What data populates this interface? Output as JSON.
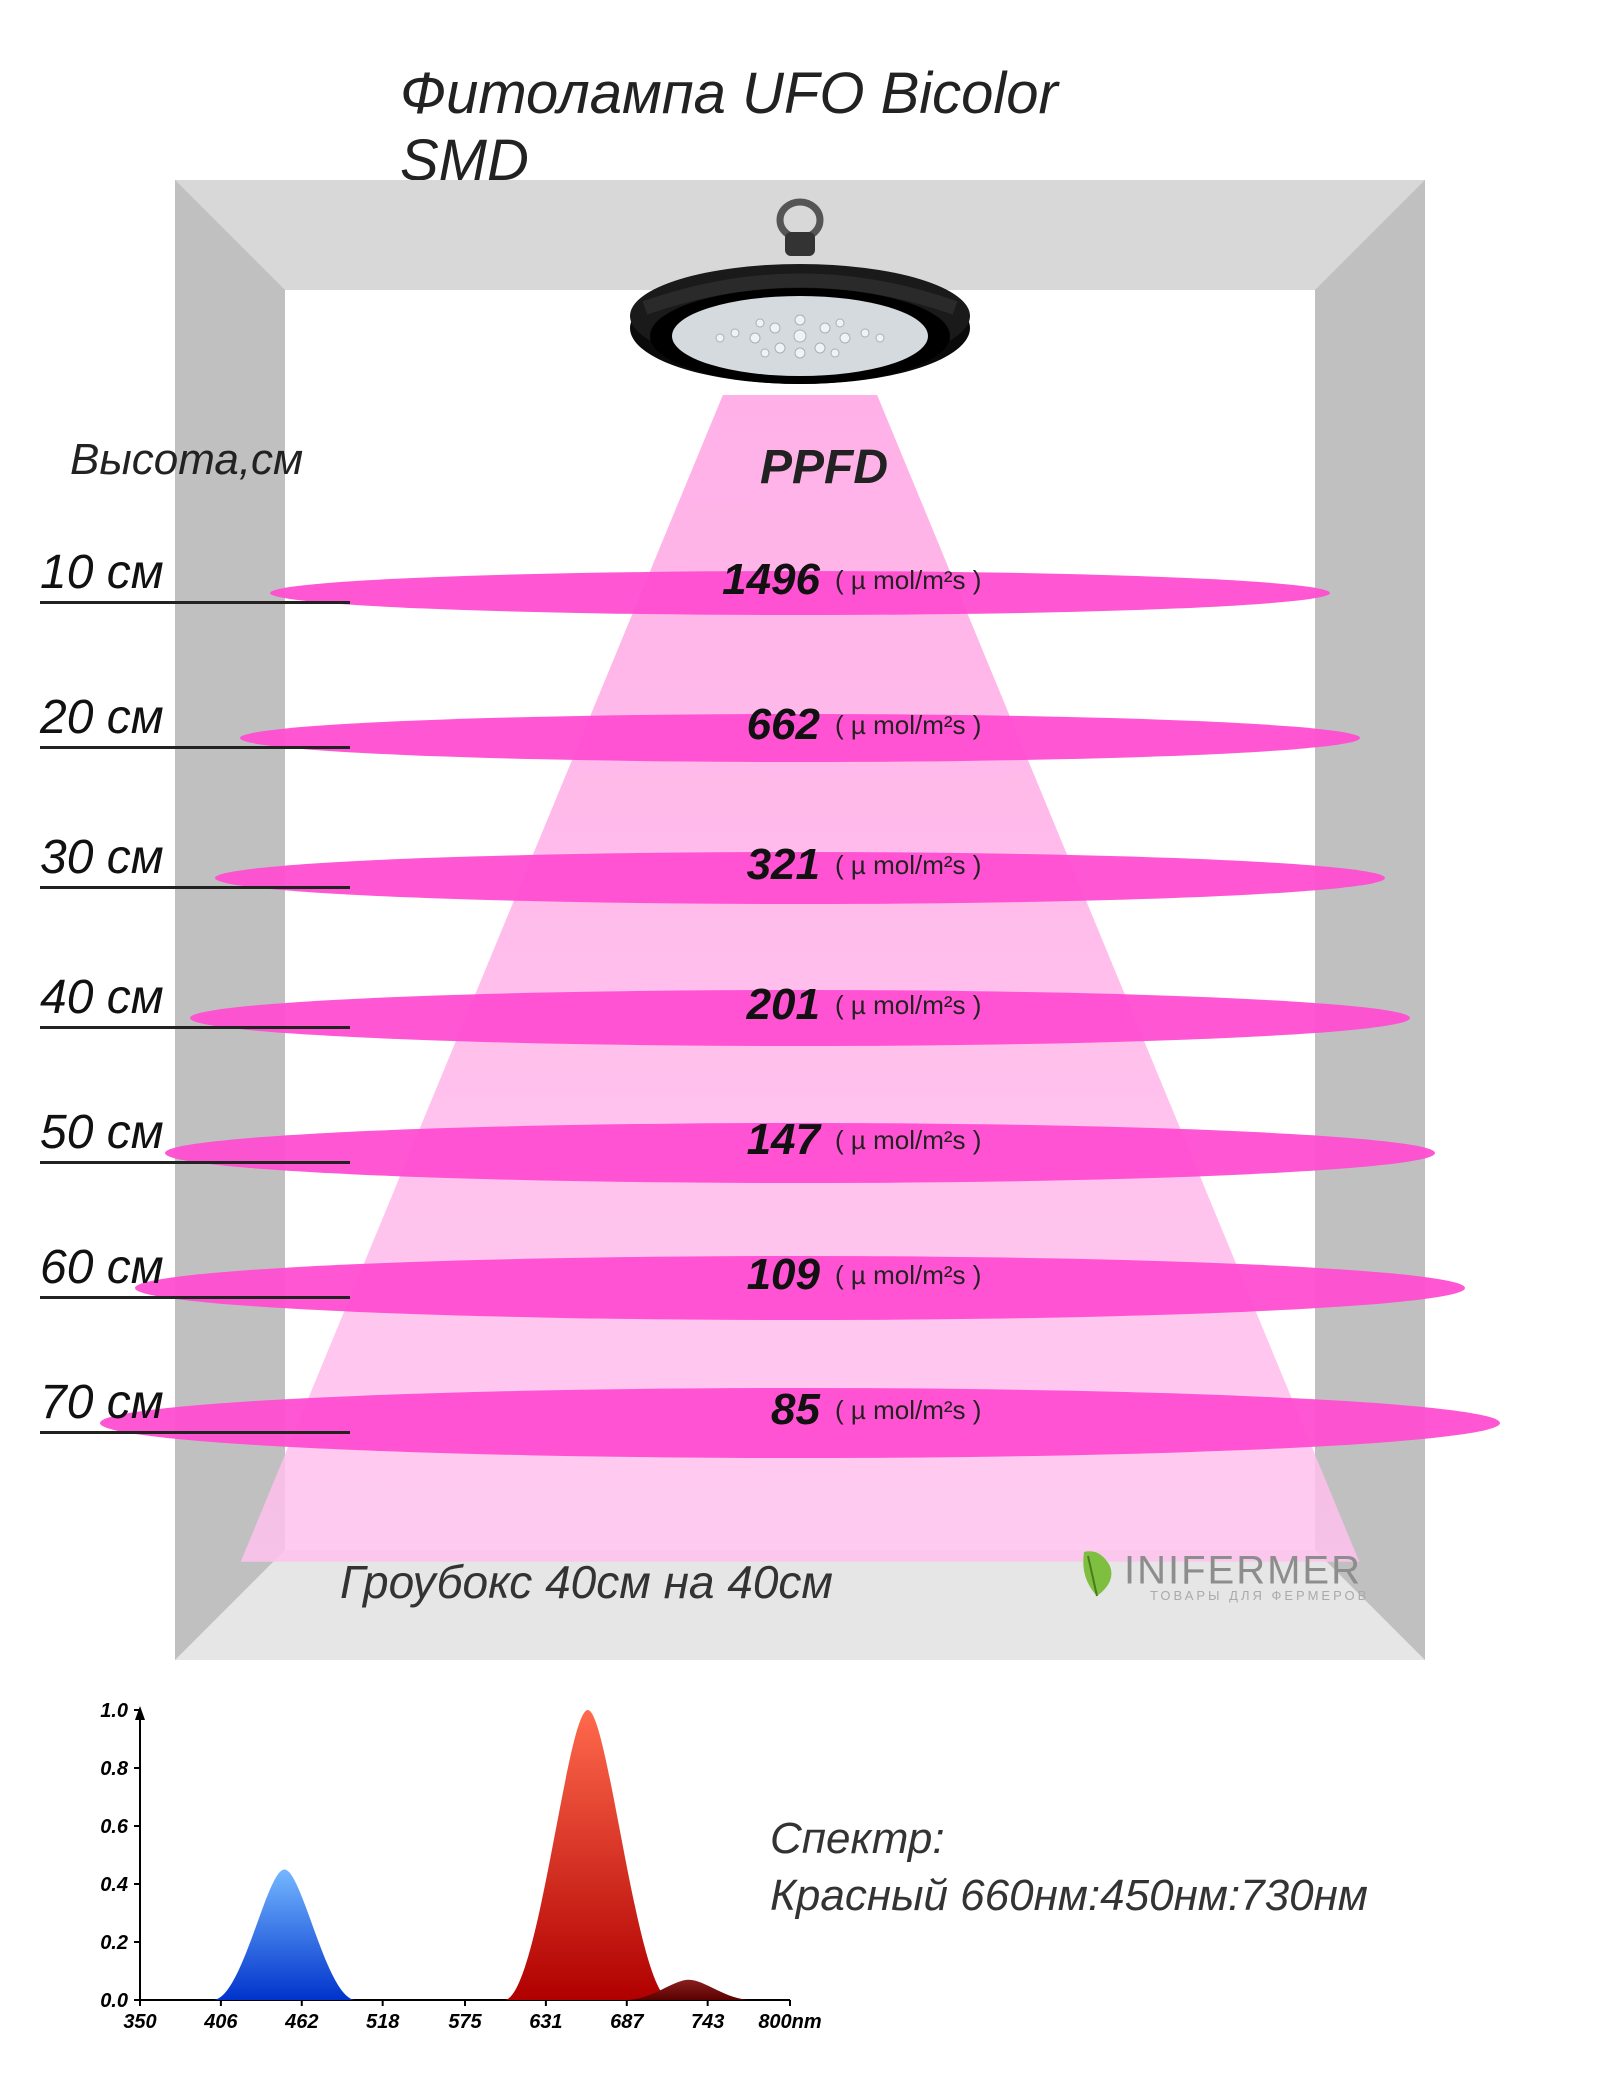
{
  "title": "Фитолампа UFO Bicolor SMD",
  "height_axis_label": "Высота,см",
  "ppfd_label": "PPFD",
  "unit_text": "( µ mol/m²s )",
  "growbox_label": "Гроубокс 40см на 40см",
  "logo_text": "INIFERMER",
  "logo_subtext": "ТОВАРЫ ДЛЯ ФЕРМЕРОВ",
  "spectrum_label_1": "Спектр:",
  "spectrum_label_2": "Красный 660нм:450нм:730нм",
  "colors": {
    "background": "#ffffff",
    "text": "#222222",
    "cone_light": "#ffb8e8",
    "cone_mid": "#ffa3e3",
    "ellipse": "#ff4dd2",
    "frame_light": "#dcdcdc",
    "frame_dark": "#b0b0b0",
    "lamp_body": "#1a1a1a",
    "lamp_face": "#cfd4d8"
  },
  "rows": [
    {
      "distance": "10 см",
      "value": "1496",
      "top": 545,
      "ellipse_w": 1060,
      "ellipse_h": 44
    },
    {
      "distance": "20 см",
      "value": "662",
      "top": 690,
      "ellipse_w": 1120,
      "ellipse_h": 48
    },
    {
      "distance": "30 см",
      "value": "321",
      "top": 830,
      "ellipse_w": 1170,
      "ellipse_h": 52
    },
    {
      "distance": "40 см",
      "value": "201",
      "top": 970,
      "ellipse_w": 1220,
      "ellipse_h": 56
    },
    {
      "distance": "50 см",
      "value": "147",
      "top": 1105,
      "ellipse_w": 1270,
      "ellipse_h": 60
    },
    {
      "distance": "60 см",
      "value": "109",
      "top": 1240,
      "ellipse_w": 1330,
      "ellipse_h": 64
    },
    {
      "distance": "70 см",
      "value": "85",
      "top": 1375,
      "ellipse_w": 1400,
      "ellipse_h": 70
    }
  ],
  "spectrum_chart": {
    "type": "spectrum",
    "x_ticks": [
      350,
      406,
      462,
      518,
      575,
      631,
      687,
      743,
      800
    ],
    "x_tick_unit_last": "800nm",
    "y_ticks": [
      "0.0",
      "0.2",
      "0.4",
      "0.6",
      "0.8",
      "1.0"
    ],
    "ylim": [
      0,
      1.0
    ],
    "peaks": [
      {
        "wavelength": 450,
        "intensity": 0.45,
        "color_top": "#74b7ff",
        "color_bottom": "#0033cc"
      },
      {
        "wavelength": 660,
        "intensity": 1.0,
        "color_top": "#ff6a4d",
        "color_bottom": "#b00000"
      },
      {
        "wavelength": 730,
        "intensity": 0.07,
        "color_top": "#8a2020",
        "color_bottom": "#5a0000"
      }
    ],
    "axis_color": "#000000",
    "tick_fontsize": 20,
    "label_fontsize": 22
  }
}
